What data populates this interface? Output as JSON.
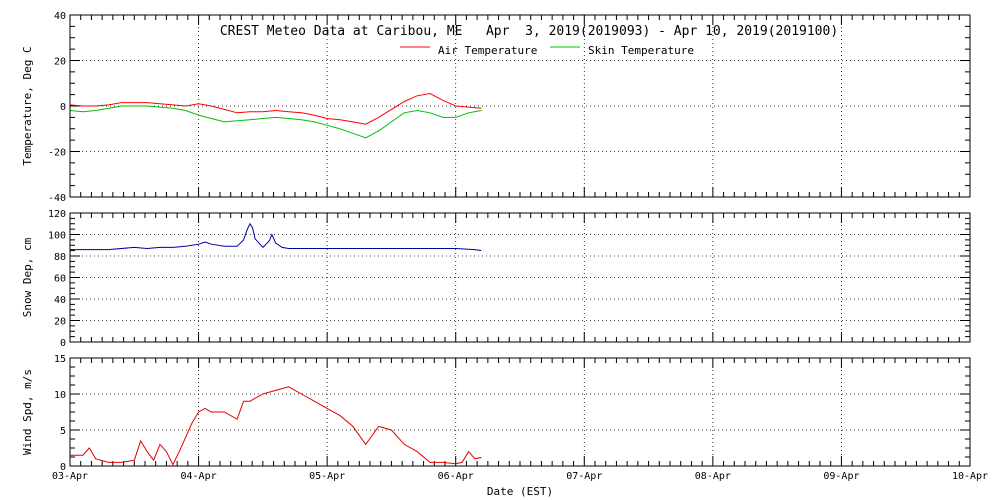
{
  "chart_data": {
    "type": "line",
    "title": "CREST Meteo Data at Caribou, ME   Apr  3, 2019(2019093) - Apr 10, 2019(2019100)",
    "xlabel": "Date (EST)",
    "x_tick_labels": [
      "03-Apr",
      "04-Apr",
      "05-Apr",
      "06-Apr",
      "07-Apr",
      "08-Apr",
      "09-Apr",
      "10-Apr"
    ],
    "xlim": [
      0,
      7
    ],
    "colors": {
      "air": "#ff0000",
      "skin": "#00c000",
      "snow": "#0000a0",
      "wind": "#e00000"
    },
    "panels": [
      {
        "ylabel": "Temperature, Deg C",
        "ylim": [
          -40,
          40
        ],
        "y_ticks": [
          -40,
          -20,
          0,
          20,
          40
        ],
        "legend": [
          {
            "name": "Air Temperature",
            "color": "#ff0000"
          },
          {
            "name": "Skin Temperature",
            "color": "#00c000"
          }
        ],
        "series": [
          {
            "name": "Air Temperature",
            "color": "#ff0000",
            "x": [
              0,
              0.1,
              0.2,
              0.3,
              0.4,
              0.5,
              0.6,
              0.7,
              0.8,
              0.9,
              1.0,
              1.1,
              1.2,
              1.3,
              1.4,
              1.5,
              1.6,
              1.7,
              1.8,
              1.9,
              2.0,
              2.1,
              2.2,
              2.3,
              2.4,
              2.5,
              2.6,
              2.7,
              2.8,
              2.9,
              3.0,
              3.1,
              3.2
            ],
            "y": [
              0.5,
              0,
              0,
              0.5,
              1.5,
              1.5,
              1.5,
              1,
              0.5,
              0,
              1,
              0,
              -1.5,
              -3,
              -2.5,
              -2.5,
              -2,
              -2.5,
              -3,
              -4,
              -5.5,
              -6,
              -7,
              -8,
              -5,
              -1.5,
              2,
              4.5,
              5.5,
              2.5,
              0,
              -0.5,
              -1
            ]
          },
          {
            "name": "Skin Temperature",
            "color": "#00c000",
            "x": [
              0,
              0.1,
              0.2,
              0.3,
              0.4,
              0.5,
              0.6,
              0.7,
              0.8,
              0.9,
              1.0,
              1.1,
              1.2,
              1.3,
              1.4,
              1.5,
              1.6,
              1.7,
              1.8,
              1.9,
              2.0,
              2.1,
              2.2,
              2.3,
              2.4,
              2.5,
              2.6,
              2.7,
              2.8,
              2.9,
              3.0,
              3.1,
              3.2
            ],
            "y": [
              -2,
              -2.5,
              -2,
              -1,
              0,
              0,
              0,
              -0.5,
              -1,
              -2,
              -4,
              -5.5,
              -7,
              -6.5,
              -6,
              -5.5,
              -5,
              -5.5,
              -6,
              -7,
              -8.5,
              -10,
              -12,
              -14,
              -11,
              -7,
              -3,
              -2,
              -3,
              -5,
              -5,
              -3,
              -2
            ]
          }
        ]
      },
      {
        "ylabel": "Snow Dep, cm",
        "ylim": [
          0,
          120
        ],
        "y_ticks": [
          0,
          20,
          40,
          60,
          80,
          100,
          120
        ],
        "series": [
          {
            "name": "",
            "color": "#0000a0",
            "x": [
              0,
              0.3,
              0.5,
              0.6,
              0.7,
              0.8,
              0.9,
              1.0,
              1.05,
              1.1,
              1.2,
              1.3,
              1.35,
              1.38,
              1.4,
              1.42,
              1.44,
              1.5,
              1.55,
              1.57,
              1.6,
              1.65,
              1.7,
              2.0,
              2.5,
              3.0,
              3.15,
              3.2
            ],
            "y": [
              86,
              86,
              88,
              87,
              88,
              88,
              89,
              91,
              93,
              91,
              89,
              89,
              95,
              105,
              110,
              106,
              96,
              88,
              94,
              100,
              92,
              88,
              87,
              87,
              87,
              87,
              86,
              85
            ]
          }
        ]
      },
      {
        "ylabel": "Wind Spd, m/s",
        "ylim": [
          0,
          15
        ],
        "y_ticks": [
          0,
          5,
          10,
          15
        ],
        "series": [
          {
            "name": "",
            "color": "#e00000",
            "x": [
              0,
              0.1,
              0.15,
              0.2,
              0.3,
              0.4,
              0.5,
              0.55,
              0.6,
              0.65,
              0.7,
              0.75,
              0.8,
              0.85,
              0.9,
              0.95,
              1.0,
              1.05,
              1.1,
              1.2,
              1.3,
              1.35,
              1.4,
              1.5,
              1.6,
              1.7,
              1.8,
              1.9,
              2.0,
              2.1,
              2.2,
              2.3,
              2.4,
              2.5,
              2.6,
              2.7,
              2.8,
              2.9,
              3.0,
              3.05,
              3.1,
              3.15,
              3.2
            ],
            "y": [
              1.5,
              1.5,
              2.5,
              1,
              0.5,
              0.5,
              0.8,
              3.5,
              2,
              0.8,
              3,
              2,
              0.2,
              2,
              4,
              6,
              7.5,
              8,
              7.5,
              7.5,
              6.5,
              9,
              9,
              10,
              10.5,
              11,
              10,
              9,
              8,
              7,
              5.5,
              3,
              5.5,
              5,
              3,
              2,
              0.5,
              0.5,
              0.3,
              0.5,
              2,
              1,
              1.2
            ]
          }
        ]
      }
    ]
  }
}
